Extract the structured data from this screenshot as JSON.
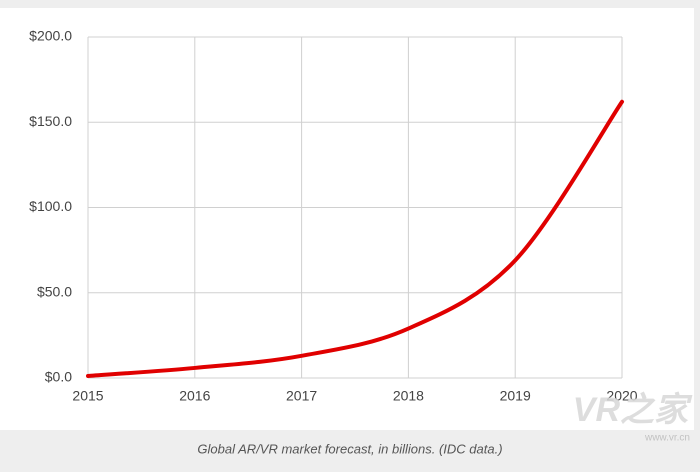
{
  "chart_data": {
    "type": "line",
    "caption": "Global AR/VR market forecast, in billions. (IDC data.)",
    "x": [
      2015,
      2016,
      2017,
      2018,
      2019,
      2020
    ],
    "series": [
      {
        "name": "AR/VR market",
        "color": "#e00000",
        "values": [
          1.2,
          5.9,
          13,
          29,
          69,
          162
        ]
      }
    ],
    "xlim": [
      2015,
      2020
    ],
    "xticks": [
      2015,
      2016,
      2017,
      2018,
      2019,
      2020
    ],
    "ylim": [
      0,
      200
    ],
    "yticks": [
      {
        "value": 0,
        "label": "$0.0"
      },
      {
        "value": 50,
        "label": "$50.0"
      },
      {
        "value": 100,
        "label": "$100.0"
      },
      {
        "value": 150,
        "label": "$150.0"
      },
      {
        "value": 200,
        "label": "$200.0"
      }
    ],
    "grid": true,
    "watermark": [
      "VR之家",
      "www.vr.cn"
    ]
  }
}
